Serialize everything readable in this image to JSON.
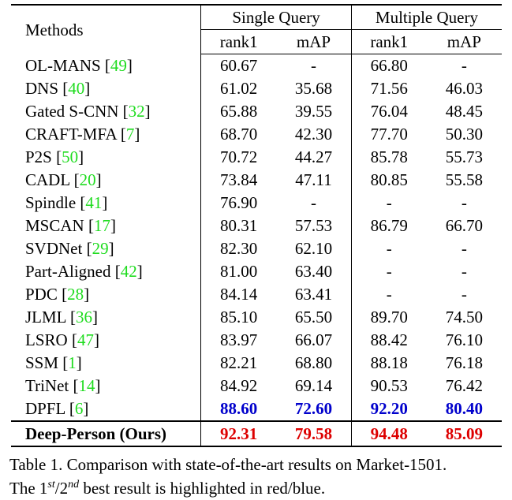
{
  "table": {
    "header": {
      "methods": "Methods",
      "single_query": "Single Query",
      "multiple_query": "Multiple Query",
      "rank1": "rank1",
      "map": "mAP"
    },
    "rows": [
      {
        "name": "OL-MANS",
        "ref": "49",
        "sq_rank1": "60.67",
        "sq_map": "-",
        "mq_rank1": "66.80",
        "mq_map": "-"
      },
      {
        "name": "DNS",
        "ref": "40",
        "sq_rank1": "61.02",
        "sq_map": "35.68",
        "mq_rank1": "71.56",
        "mq_map": "46.03"
      },
      {
        "name": "Gated S-CNN",
        "ref": "32",
        "sq_rank1": "65.88",
        "sq_map": "39.55",
        "mq_rank1": "76.04",
        "mq_map": "48.45"
      },
      {
        "name": "CRAFT-MFA",
        "ref": "7",
        "sq_rank1": "68.70",
        "sq_map": "42.30",
        "mq_rank1": "77.70",
        "mq_map": "50.30"
      },
      {
        "name": "P2S",
        "ref": "50",
        "sq_rank1": "70.72",
        "sq_map": "44.27",
        "mq_rank1": "85.78",
        "mq_map": "55.73"
      },
      {
        "name": "CADL",
        "ref": "20",
        "sq_rank1": "73.84",
        "sq_map": "47.11",
        "mq_rank1": "80.85",
        "mq_map": "55.58"
      },
      {
        "name": "Spindle",
        "ref": "41",
        "sq_rank1": "76.90",
        "sq_map": "-",
        "mq_rank1": "-",
        "mq_map": "-"
      },
      {
        "name": "MSCAN",
        "ref": "17",
        "sq_rank1": "80.31",
        "sq_map": "57.53",
        "mq_rank1": "86.79",
        "mq_map": "66.70"
      },
      {
        "name": "SVDNet",
        "ref": "29",
        "sq_rank1": "82.30",
        "sq_map": "62.10",
        "mq_rank1": "-",
        "mq_map": "-"
      },
      {
        "name": "Part-Aligned",
        "ref": "42",
        "sq_rank1": "81.00",
        "sq_map": "63.40",
        "mq_rank1": "-",
        "mq_map": "-"
      },
      {
        "name": "PDC",
        "ref": "28",
        "sq_rank1": "84.14",
        "sq_map": "63.41",
        "mq_rank1": "-",
        "mq_map": "-"
      },
      {
        "name": "JLML",
        "ref": "36",
        "sq_rank1": "85.10",
        "sq_map": "65.50",
        "mq_rank1": "89.70",
        "mq_map": "74.50"
      },
      {
        "name": "LSRO",
        "ref": "47",
        "sq_rank1": "83.97",
        "sq_map": "66.07",
        "mq_rank1": "88.42",
        "mq_map": "76.10"
      },
      {
        "name": "SSM",
        "ref": "1",
        "sq_rank1": "82.21",
        "sq_map": "68.80",
        "mq_rank1": "88.18",
        "mq_map": "76.18"
      },
      {
        "name": "TriNet",
        "ref": "14",
        "sq_rank1": "84.92",
        "sq_map": "69.14",
        "mq_rank1": "90.53",
        "mq_map": "76.42"
      },
      {
        "name": "DPFL",
        "ref": "6",
        "sq_rank1": "88.60",
        "sq_map": "72.60",
        "mq_rank1": "92.20",
        "mq_map": "80.40",
        "highlight": "second"
      },
      {
        "name": "Deep-Person (Ours)",
        "ref": "",
        "sq_rank1": "92.31",
        "sq_map": "79.58",
        "mq_rank1": "94.48",
        "mq_map": "85.09",
        "highlight": "first"
      }
    ]
  },
  "caption": {
    "line1": "Table 1. Comparison with state-of-the-art results on Market-1501.",
    "line2_pre": "The 1",
    "sup1": "st",
    "slash": "/2",
    "sup2": "nd",
    "line2_post": " best result is highlighted in red/blue."
  },
  "colors": {
    "first": "#dd0000",
    "second": "#0000cc",
    "citation": "#1fdc1f"
  }
}
